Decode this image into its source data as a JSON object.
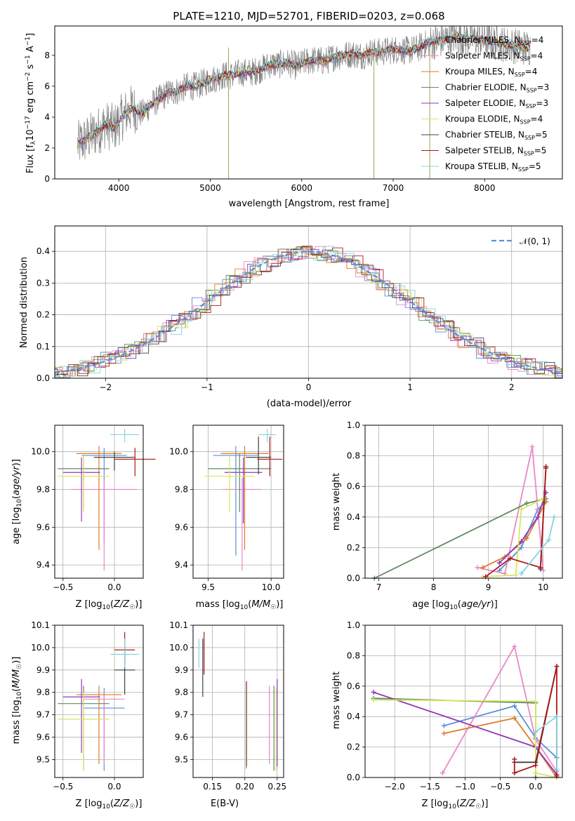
{
  "chart_data": [
    {
      "id": "spectrum",
      "type": "line",
      "title": "PLATE=1210, MJD=52701, FIBERID=0203, z=0.068",
      "xlabel": "wavelength [Angstrom, rest frame]",
      "ylabel": "Flux [fλ 10⁻¹⁷ erg cm⁻² s⁻¹ A⁻¹]",
      "xlim": [
        3300,
        8850
      ],
      "ylim": [
        0,
        9.9
      ],
      "xticks": [
        4000,
        5000,
        6000,
        7000,
        8000
      ],
      "yticks": [
        0,
        2,
        4,
        6,
        8
      ],
      "grid": false,
      "legend_position": "upper right",
      "data": {
        "x": [
          3550,
          3650,
          3750,
          3850,
          3950,
          4050,
          4150,
          4250,
          4350,
          4450,
          4550,
          4650,
          4750,
          4850,
          4950,
          5050,
          5150,
          5250,
          5350,
          5450,
          5550,
          5650,
          5750,
          5850,
          5950,
          6050,
          6150,
          6250,
          6350,
          6450,
          6550,
          6650,
          6750,
          6850,
          6950,
          7050,
          7150,
          7250,
          7350,
          7450,
          7550,
          7650,
          7750,
          7850,
          7950,
          8050,
          8150,
          8250,
          8350,
          8450
        ],
        "y": [
          2.2,
          2.6,
          3.0,
          3.5,
          3.3,
          4.1,
          4.6,
          4.2,
          4.8,
          5.2,
          5.6,
          5.7,
          6.0,
          6.0,
          6.3,
          6.5,
          6.7,
          6.7,
          6.9,
          6.9,
          7.1,
          7.4,
          7.4,
          7.5,
          7.3,
          7.6,
          7.7,
          7.6,
          7.9,
          8.0,
          8.1,
          8.0,
          8.2,
          8.2,
          8.3,
          8.4,
          8.3,
          8.4,
          8.7,
          8.9,
          9.0,
          9.2,
          9.1,
          9.1,
          9.0,
          8.9,
          8.8,
          8.7,
          8.6,
          8.5
        ]
      },
      "series": [
        {
          "name": "Chabrier MILES, N_SSP=4",
          "color": "#5b8fd8"
        },
        {
          "name": "Salpeter MILES, N_SSP=4",
          "color": "#e889c8"
        },
        {
          "name": "Kroupa MILES, N_SSP=4",
          "color": "#e07b2a"
        },
        {
          "name": "Chabrier ELODIE, N_SSP=3",
          "color": "#5f8a60"
        },
        {
          "name": "Salpeter ELODIE, N_SSP=3",
          "color": "#9038b8"
        },
        {
          "name": "Kroupa ELODIE, N_SSP=4",
          "color": "#d4e85e"
        },
        {
          "name": "Chabrier STELIB, N_SSP=5",
          "color": "#404040"
        },
        {
          "name": "Salpeter STELIB, N_SSP=5",
          "color": "#b01818"
        },
        {
          "name": "Kroupa STELIB, N_SSP=5",
          "color": "#7fd6e0"
        }
      ]
    },
    {
      "id": "residuals",
      "type": "line",
      "xlabel": "(data-model)/error",
      "ylabel": "Normed distribution",
      "xlim": [
        -2.5,
        2.5
      ],
      "ylim": [
        0,
        0.48
      ],
      "xticks": [
        -2,
        -1,
        0,
        1,
        2
      ],
      "yticks": [
        0.0,
        0.1,
        0.2,
        0.3,
        0.4
      ],
      "grid": true,
      "legend": "𝒩(0, 1)",
      "legend_position": "upper right",
      "series_colors": [
        "#5b8fd8",
        "#e889c8",
        "#e07b2a",
        "#5f8a60",
        "#9038b8",
        "#d4e85e",
        "#404040",
        "#b01818",
        "#7fd6e0"
      ]
    },
    {
      "id": "age-vs-Z",
      "type": "scatter",
      "xlabel": "Z [log10(Z/Z⊙)]",
      "ylabel": "age  [log10(age/yr)]",
      "xlim": [
        -0.58,
        0.28
      ],
      "ylim": [
        9.33,
        10.14
      ],
      "xticks": [
        -0.5,
        0.0
      ],
      "yticks": [
        9.4,
        9.6,
        9.8,
        10.0
      ],
      "grid": true,
      "points": [
        {
          "x": -0.1,
          "y": 9.98,
          "xerr": 0.22,
          "ylo": 9.52,
          "yhi": 10.02,
          "color": "#5b8fd8"
        },
        {
          "x": -0.1,
          "y": 9.8,
          "xerr": 0.32,
          "ylo": 9.37,
          "yhi": 9.85,
          "color": "#e889c8"
        },
        {
          "x": -0.15,
          "y": 9.99,
          "xerr": 0.22,
          "ylo": 9.48,
          "yhi": 10.03,
          "color": "#e07b2a"
        },
        {
          "x": -0.3,
          "y": 9.91,
          "xerr": 0.25,
          "ylo": 9.69,
          "yhi": 9.99,
          "color": "#5f8a60"
        },
        {
          "x": -0.32,
          "y": 9.89,
          "xerr": 0.18,
          "ylo": 9.63,
          "yhi": 9.97,
          "color": "#9038b8"
        },
        {
          "x": -0.3,
          "y": 9.87,
          "xerr": 0.25,
          "ylo": 9.68,
          "yhi": 9.99,
          "color": "#d4e85e"
        },
        {
          "x": 0.0,
          "y": 9.97,
          "xerr": 0.2,
          "ylo": 9.9,
          "yhi": 10.0,
          "color": "#404040"
        },
        {
          "x": 0.2,
          "y": 9.96,
          "xerr": 0.2,
          "ylo": 9.87,
          "yhi": 10.02,
          "color": "#b01818"
        },
        {
          "x": 0.1,
          "y": 10.09,
          "xerr": 0.14,
          "ylo": 10.05,
          "yhi": 10.12,
          "color": "#7fd6e0"
        }
      ]
    },
    {
      "id": "age-vs-mass",
      "type": "scatter",
      "xlabel": "mass [log10(M/M⊙)]",
      "ylabel": "",
      "xlim": [
        9.38,
        10.1
      ],
      "ylim": [
        9.33,
        10.14
      ],
      "xticks": [
        9.5,
        10.0
      ],
      "yticks": [
        9.4,
        9.6,
        9.8,
        10.0
      ],
      "grid": true,
      "points": [
        {
          "x": 9.72,
          "y": 9.98,
          "xerr": 0.18,
          "ylo": 9.45,
          "yhi": 10.03,
          "color": "#5b8fd8"
        },
        {
          "x": 9.77,
          "y": 9.8,
          "xerr": 0.15,
          "ylo": 9.37,
          "yhi": 9.86,
          "color": "#e889c8"
        },
        {
          "x": 9.79,
          "y": 9.99,
          "xerr": 0.19,
          "ylo": 9.48,
          "yhi": 10.03,
          "color": "#e07b2a"
        },
        {
          "x": 9.75,
          "y": 9.91,
          "xerr": 0.25,
          "ylo": 9.68,
          "yhi": 9.99,
          "color": "#5f8a60"
        },
        {
          "x": 9.78,
          "y": 9.89,
          "xerr": 0.15,
          "ylo": 9.62,
          "yhi": 9.97,
          "color": "#9038b8"
        },
        {
          "x": 9.67,
          "y": 9.87,
          "xerr": 0.2,
          "ylo": 9.68,
          "yhi": 9.99,
          "color": "#d4e85e"
        },
        {
          "x": 9.9,
          "y": 9.97,
          "xerr": 0.1,
          "ylo": 9.88,
          "yhi": 10.08,
          "color": "#404040"
        },
        {
          "x": 9.99,
          "y": 9.96,
          "xerr": 0.1,
          "ylo": 9.87,
          "yhi": 10.08,
          "color": "#b01818"
        },
        {
          "x": 9.97,
          "y": 10.09,
          "xerr": 0.07,
          "ylo": 10.05,
          "yhi": 10.12,
          "color": "#7fd6e0"
        }
      ]
    },
    {
      "id": "weight-vs-age",
      "type": "line",
      "xlabel": "age  [log10(age/yr)]",
      "ylabel": "mass weight",
      "xlim": [
        6.75,
        10.35
      ],
      "ylim": [
        0.0,
        1.0
      ],
      "xticks": [
        7,
        8,
        9,
        10
      ],
      "yticks": [
        0.0,
        0.2,
        0.4,
        0.6,
        0.8,
        1.0
      ],
      "grid": true,
      "series": [
        {
          "color": "#5b8fd8",
          "x": [
            9.2,
            9.6,
            9.9,
            10.05
          ],
          "y": [
            0.05,
            0.2,
            0.45,
            0.5
          ]
        },
        {
          "color": "#e889c8",
          "x": [
            8.8,
            9.3,
            9.8,
            10.0
          ],
          "y": [
            0.07,
            0.03,
            0.86,
            0.05
          ]
        },
        {
          "color": "#e07b2a",
          "x": [
            8.9,
            9.3,
            9.7,
            10.05
          ],
          "y": [
            0.07,
            0.14,
            0.26,
            0.5
          ]
        },
        {
          "color": "#5f8a60",
          "x": [
            6.92,
            9.7,
            10.05
          ],
          "y": [
            0.0,
            0.49,
            0.52
          ]
        },
        {
          "color": "#9038b8",
          "x": [
            9.2,
            9.6,
            9.9,
            10.05
          ],
          "y": [
            0.1,
            0.24,
            0.4,
            0.56
          ]
        },
        {
          "color": "#d4e85e",
          "x": [
            8.9,
            9.5,
            9.6,
            10.0
          ],
          "y": [
            0.01,
            0.02,
            0.45,
            0.52
          ]
        },
        {
          "color": "#404040",
          "x": [
            9.95,
            10.05
          ],
          "y": [
            0.06,
            0.72
          ]
        },
        {
          "color": "#b01818",
          "x": [
            8.95,
            9.4,
            9.95,
            10.05
          ],
          "y": [
            0.01,
            0.13,
            0.07,
            0.73
          ]
        },
        {
          "color": "#7fd6e0",
          "x": [
            9.6,
            10.1,
            10.2
          ],
          "y": [
            0.03,
            0.25,
            0.4
          ]
        }
      ]
    },
    {
      "id": "mass-vs-Z",
      "type": "scatter",
      "xlabel": "Z [log10(Z/Z⊙)]",
      "ylabel": "mass [log10(M/M⊙)]",
      "xlim": [
        -0.58,
        0.28
      ],
      "ylim": [
        9.42,
        10.1
      ],
      "xticks": [
        -0.5,
        0.0
      ],
      "yticks": [
        9.5,
        9.6,
        9.7,
        9.8,
        9.9,
        10.0,
        10.1
      ],
      "grid": true,
      "points": [
        {
          "x": -0.1,
          "y": 9.73,
          "xerr": 0.2,
          "ylo": 9.45,
          "yhi": 9.82,
          "color": "#5b8fd8"
        },
        {
          "x": -0.1,
          "y": 9.77,
          "xerr": 0.2,
          "ylo": 9.48,
          "yhi": 9.8,
          "color": "#e889c8"
        },
        {
          "x": -0.15,
          "y": 9.79,
          "xerr": 0.22,
          "ylo": 9.48,
          "yhi": 9.83,
          "color": "#e07b2a"
        },
        {
          "x": -0.3,
          "y": 9.75,
          "xerr": 0.25,
          "ylo": 9.45,
          "yhi": 9.83,
          "color": "#5f8a60"
        },
        {
          "x": -0.32,
          "y": 9.78,
          "xerr": 0.18,
          "ylo": 9.53,
          "yhi": 9.86,
          "color": "#9038b8"
        },
        {
          "x": -0.3,
          "y": 9.68,
          "xerr": 0.25,
          "ylo": 9.45,
          "yhi": 9.8,
          "color": "#d4e85e"
        },
        {
          "x": 0.1,
          "y": 9.9,
          "xerr": 0.1,
          "ylo": 9.79,
          "yhi": 9.99,
          "color": "#404040"
        },
        {
          "x": 0.1,
          "y": 9.99,
          "xerr": 0.1,
          "ylo": 9.93,
          "yhi": 10.07,
          "color": "#b01818"
        },
        {
          "x": 0.1,
          "y": 9.97,
          "xerr": 0.14,
          "ylo": 9.91,
          "yhi": 10.04,
          "color": "#7fd6e0"
        }
      ]
    },
    {
      "id": "mass-vs-EBV",
      "type": "scatter",
      "xlabel": "E(B-V)",
      "ylabel": "",
      "xlim": [
        0.12,
        0.26
      ],
      "ylim": [
        9.42,
        10.1
      ],
      "xticks": [
        0.15,
        0.2,
        0.25
      ],
      "yticks": [
        9.5,
        9.6,
        9.7,
        9.8,
        9.9,
        10.0,
        10.1
      ],
      "grid": true,
      "points": [
        {
          "x": 0.202,
          "ylo": 9.46,
          "yhi": 9.85,
          "color": "#5b8fd8"
        },
        {
          "x": 0.238,
          "ylo": 9.48,
          "yhi": 9.83,
          "color": "#e889c8"
        },
        {
          "x": 0.203,
          "ylo": 9.47,
          "yhi": 9.85,
          "color": "#e07b2a"
        },
        {
          "x": 0.245,
          "ylo": 9.45,
          "yhi": 9.83,
          "color": "#5f8a60"
        },
        {
          "x": 0.25,
          "ylo": 9.47,
          "yhi": 9.86,
          "color": "#9038b8"
        },
        {
          "x": 0.248,
          "ylo": 9.45,
          "yhi": 9.82,
          "color": "#d4e85e"
        },
        {
          "x": 0.135,
          "ylo": 9.78,
          "yhi": 10.04,
          "color": "#404040"
        },
        {
          "x": 0.137,
          "ylo": 9.88,
          "yhi": 10.07,
          "color": "#b01818"
        },
        {
          "x": 0.129,
          "ylo": 9.91,
          "yhi": 10.04,
          "color": "#7fd6e0"
        }
      ]
    },
    {
      "id": "weight-vs-Z",
      "type": "line",
      "xlabel": "Z [log10(Z/Z⊙)]",
      "ylabel": "mass weight",
      "xlim": [
        -2.42,
        0.38
      ],
      "ylim": [
        0.0,
        1.0
      ],
      "xticks": [
        -2.0,
        -1.5,
        -1.0,
        -0.5,
        0.0
      ],
      "yticks": [
        0.0,
        0.2,
        0.4,
        0.6,
        0.8,
        1.0
      ],
      "grid": true,
      "series": [
        {
          "color": "#5b8fd8",
          "x": [
            -1.3,
            -0.3,
            0.0,
            0.3
          ],
          "y": [
            0.34,
            0.47,
            0.26,
            0.13
          ]
        },
        {
          "color": "#e889c8",
          "x": [
            -1.32,
            -0.3,
            0.0,
            0.3
          ],
          "y": [
            0.03,
            0.86,
            0.25,
            0.04
          ]
        },
        {
          "color": "#e07b2a",
          "x": [
            -1.3,
            -0.3,
            0.0,
            0.3
          ],
          "y": [
            0.29,
            0.39,
            0.2,
            0.0
          ]
        },
        {
          "color": "#5f8a60",
          "x": [
            -2.3,
            0.0,
            0.0
          ],
          "y": [
            0.52,
            0.49,
            0.0
          ]
        },
        {
          "color": "#9038b8",
          "x": [
            -2.3,
            0.0,
            0.3
          ],
          "y": [
            0.56,
            0.2,
            0.02
          ]
        },
        {
          "color": "#d4e85e",
          "x": [
            -2.3,
            0.0,
            0.0,
            0.3
          ],
          "y": [
            0.51,
            0.5,
            0.03,
            0.0
          ]
        },
        {
          "color": "#404040",
          "x": [
            -0.3,
            0.0,
            0.3
          ],
          "y": [
            0.1,
            0.1,
            0.73
          ]
        },
        {
          "color": "#b01818",
          "x": [
            -0.3,
            -0.3,
            0.0,
            0.3,
            0.3
          ],
          "y": [
            0.12,
            0.03,
            0.08,
            0.73,
            0.01
          ]
        },
        {
          "color": "#7fd6e0",
          "x": [
            0.0,
            0.3,
            0.3
          ],
          "y": [
            0.3,
            0.4,
            0.05
          ]
        }
      ]
    }
  ]
}
